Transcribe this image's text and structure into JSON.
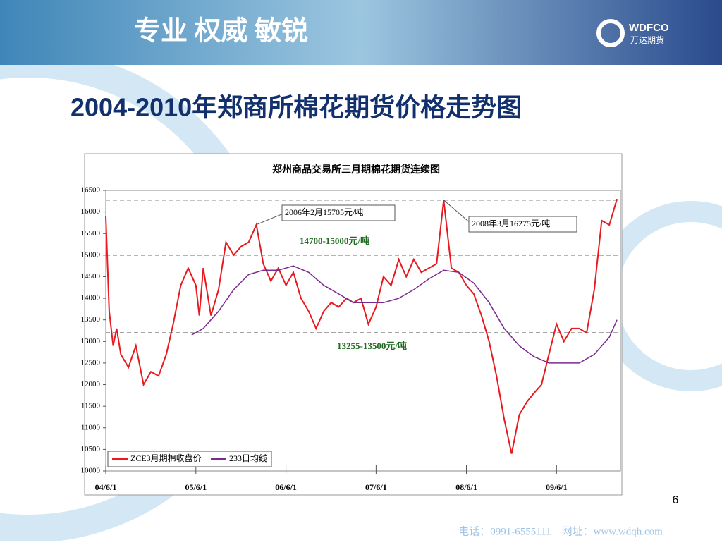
{
  "header": {
    "slogan": "专业 权威 敏锐",
    "logo_text": "WDFCO",
    "logo_subtext": "万达期货"
  },
  "slide_title": "2004-2010年郑商所棉花期货价格走势图",
  "page_number": "6",
  "footer": "电话：0991-6555111    网址：www.wdqh.com",
  "chart_data": {
    "type": "line",
    "title": "郑州商品交易所三月期棉花期货连续图",
    "xlim": [
      "2004-06-01",
      "2010-02-15"
    ],
    "xticks": [
      {
        "value": "2004-06-01",
        "label": "04/6/1"
      },
      {
        "value": "2005-06-01",
        "label": "05/6/1"
      },
      {
        "value": "2006-06-01",
        "label": "06/6/1"
      },
      {
        "value": "2007-06-01",
        "label": "07/6/1"
      },
      {
        "value": "2008-06-01",
        "label": "08/6/1"
      },
      {
        "value": "2009-06-01",
        "label": "09/6/1"
      }
    ],
    "ylim": [
      10000,
      16500
    ],
    "yticks": [
      10000,
      10500,
      11000,
      11500,
      12000,
      12500,
      13000,
      13500,
      14000,
      14500,
      15000,
      15500,
      16000,
      16500
    ],
    "reference_lines": [
      16275,
      15000,
      13200
    ],
    "legend": "bottom-left",
    "annotations": [
      "2006年2月15705元/吨",
      "2008年3月16275元/吨",
      "14700-15000元/吨",
      "13255-13500元/吨"
    ],
    "series": [
      {
        "name": "ZCE3月期棉收盘价",
        "color": "#e8191f",
        "x": [
          "2004-06-01",
          "2004-06-15",
          "2004-07-01",
          "2004-07-15",
          "2004-08-01",
          "2004-09-01",
          "2004-10-01",
          "2004-11-01",
          "2004-12-01",
          "2005-01-01",
          "2005-02-01",
          "2005-03-01",
          "2005-04-01",
          "2005-05-01",
          "2005-06-01",
          "2005-06-15",
          "2005-07-01",
          "2005-08-01",
          "2005-09-01",
          "2005-10-01",
          "2005-11-01",
          "2005-12-01",
          "2006-01-01",
          "2006-02-01",
          "2006-03-01",
          "2006-04-01",
          "2006-05-01",
          "2006-06-01",
          "2006-07-01",
          "2006-08-01",
          "2006-09-01",
          "2006-10-01",
          "2006-11-01",
          "2006-12-01",
          "2007-01-01",
          "2007-02-01",
          "2007-03-01",
          "2007-04-01",
          "2007-05-01",
          "2007-06-01",
          "2007-07-01",
          "2007-08-01",
          "2007-09-01",
          "2007-10-01",
          "2007-11-01",
          "2007-12-01",
          "2008-01-01",
          "2008-02-01",
          "2008-03-01",
          "2008-04-01",
          "2008-05-01",
          "2008-06-01",
          "2008-07-01",
          "2008-08-01",
          "2008-09-01",
          "2008-10-01",
          "2008-11-01",
          "2008-12-01",
          "2009-01-01",
          "2009-02-01",
          "2009-03-01",
          "2009-04-01",
          "2009-05-01",
          "2009-06-01",
          "2009-07-01",
          "2009-08-01",
          "2009-09-01",
          "2009-10-01",
          "2009-11-01",
          "2009-12-01",
          "2010-01-01",
          "2010-02-01"
        ],
        "values": [
          15900,
          13700,
          12900,
          13300,
          12700,
          12400,
          12900,
          12000,
          12300,
          12200,
          12700,
          13400,
          14300,
          14700,
          14300,
          13600,
          14700,
          13600,
          14200,
          15300,
          15000,
          15200,
          15300,
          15705,
          14800,
          14400,
          14700,
          14300,
          14600,
          14000,
          13700,
          13300,
          13700,
          13900,
          13800,
          14000,
          13900,
          14000,
          13400,
          13800,
          14500,
          14300,
          14900,
          14500,
          14900,
          14600,
          14700,
          14800,
          16275,
          14700,
          14600,
          14300,
          14100,
          13600,
          13000,
          12200,
          11200,
          10400,
          11300,
          11600,
          11800,
          12000,
          12700,
          13400,
          13000,
          13300,
          13300,
          13200,
          14200,
          15800,
          15700,
          16300
        ]
      },
      {
        "name": "233日均线",
        "color": "#7b2a8e",
        "x": [
          "2005-05-15",
          "2005-07-01",
          "2005-09-01",
          "2005-11-01",
          "2006-01-01",
          "2006-03-01",
          "2006-05-01",
          "2006-07-01",
          "2006-09-01",
          "2006-11-01",
          "2007-01-01",
          "2007-03-01",
          "2007-05-01",
          "2007-07-01",
          "2007-09-01",
          "2007-11-01",
          "2008-01-01",
          "2008-03-01",
          "2008-05-01",
          "2008-07-01",
          "2008-09-01",
          "2008-11-01",
          "2009-01-01",
          "2009-03-01",
          "2009-05-01",
          "2009-07-01",
          "2009-09-01",
          "2009-11-01",
          "2010-01-01",
          "2010-02-01"
        ],
        "values": [
          13150,
          13300,
          13700,
          14200,
          14550,
          14650,
          14650,
          14750,
          14600,
          14300,
          14100,
          13900,
          13900,
          13900,
          14000,
          14200,
          14450,
          14650,
          14600,
          14350,
          13900,
          13300,
          12900,
          12650,
          12500,
          12500,
          12500,
          12700,
          13100,
          13500
        ]
      }
    ]
  }
}
